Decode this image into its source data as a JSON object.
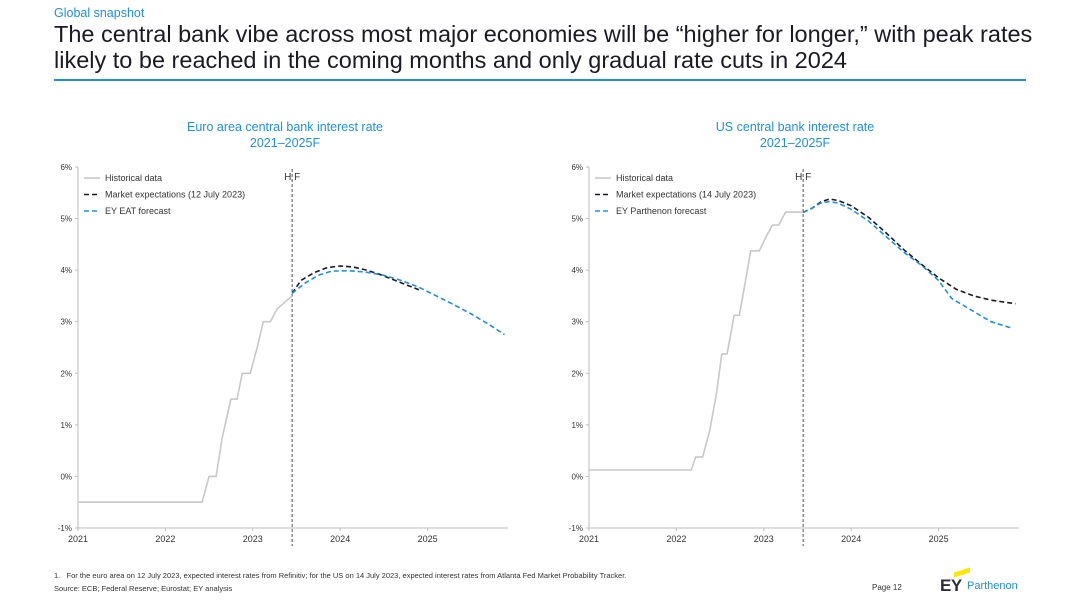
{
  "header": {
    "kicker": "Global snapshot",
    "headline": "The central bank vibe across most major economies will be “higher for longer,” with peak rates likely to be reached in the coming months and only gradual rate cuts in 2024"
  },
  "chart_data": [
    {
      "type": "line",
      "title": "Euro area central bank interest rate",
      "subtitle": "2021–2025F",
      "xlabel": "",
      "ylabel": "",
      "xlim": [
        2021.0,
        2025.92
      ],
      "ylim": [
        -1,
        6
      ],
      "y_ticks": [
        "-1%",
        "0%",
        "1%",
        "2%",
        "3%",
        "4%",
        "5%",
        "6%"
      ],
      "x_ticks": [
        "2021",
        "2022",
        "2023",
        "2024",
        "2025"
      ],
      "divider_x": 2023.45,
      "divider_label": "H F",
      "legend": [
        "Historical data",
        "Market expectations (12 July 2023)",
        "EY EAT forecast"
      ],
      "series": [
        {
          "name": "Historical data",
          "style": "solid",
          "color": "#c8c8c8",
          "x": [
            2021.0,
            2022.42,
            2022.5,
            2022.58,
            2022.65,
            2022.75,
            2022.82,
            2022.88,
            2022.97,
            2023.05,
            2023.12,
            2023.2,
            2023.28,
            2023.45
          ],
          "y": [
            -0.5,
            -0.5,
            0.0,
            0.0,
            0.75,
            1.5,
            1.5,
            2.0,
            2.0,
            2.5,
            3.0,
            3.0,
            3.25,
            3.5
          ]
        },
        {
          "name": "Market expectations (12 July 2023)",
          "style": "dashed",
          "color": "#1a1a24",
          "x": [
            2023.45,
            2023.55,
            2023.7,
            2023.85,
            2024.0,
            2024.15,
            2024.3,
            2024.45,
            2024.6,
            2024.75,
            2024.9
          ],
          "y": [
            3.55,
            3.8,
            3.95,
            4.05,
            4.08,
            4.06,
            4.0,
            3.92,
            3.82,
            3.72,
            3.62
          ]
        },
        {
          "name": "EY EAT forecast",
          "style": "dashed",
          "color": "#1f8fe0",
          "x": [
            2023.45,
            2023.6,
            2023.75,
            2023.9,
            2024.1,
            2024.3,
            2024.5,
            2024.7,
            2024.9,
            2025.1,
            2025.3,
            2025.5,
            2025.7,
            2025.88
          ],
          "y": [
            3.55,
            3.75,
            3.9,
            3.98,
            3.99,
            3.96,
            3.9,
            3.8,
            3.67,
            3.5,
            3.33,
            3.15,
            2.95,
            2.75
          ]
        }
      ]
    },
    {
      "type": "line",
      "title": "US central bank interest rate",
      "subtitle": "2021–2025F",
      "xlabel": "",
      "ylabel": "",
      "xlim": [
        2021.0,
        2025.92
      ],
      "ylim": [
        -1,
        6
      ],
      "y_ticks": [
        "-1%",
        "0%",
        "1%",
        "2%",
        "3%",
        "4%",
        "5%",
        "6%"
      ],
      "x_ticks": [
        "2021",
        "2022",
        "2023",
        "2024",
        "2025"
      ],
      "divider_x": 2023.45,
      "divider_label": "H F",
      "legend": [
        "Historical data",
        "Market expectations (14 July 2023)",
        "EY Parthenon forecast"
      ],
      "series": [
        {
          "name": "Historical data",
          "style": "solid",
          "color": "#c8c8c8",
          "x": [
            2021.0,
            2022.17,
            2022.22,
            2022.3,
            2022.38,
            2022.46,
            2022.52,
            2022.58,
            2022.66,
            2022.72,
            2022.8,
            2022.85,
            2022.95,
            2023.02,
            2023.1,
            2023.17,
            2023.25,
            2023.32,
            2023.4,
            2023.45
          ],
          "y": [
            0.125,
            0.125,
            0.375,
            0.375,
            0.875,
            1.625,
            2.375,
            2.375,
            3.125,
            3.125,
            3.875,
            4.375,
            4.375,
            4.625,
            4.875,
            4.875,
            5.125,
            5.125,
            5.125,
            5.125
          ]
        },
        {
          "name": "Market expectations (14 July 2023)",
          "style": "dashed",
          "color": "#1a1a24",
          "x": [
            2023.45,
            2023.55,
            2023.65,
            2023.75,
            2023.85,
            2024.0,
            2024.2,
            2024.4,
            2024.6,
            2024.8,
            2025.0,
            2025.2,
            2025.4,
            2025.6,
            2025.75,
            2025.88
          ],
          "y": [
            5.12,
            5.2,
            5.32,
            5.38,
            5.35,
            5.25,
            5.02,
            4.72,
            4.4,
            4.12,
            3.85,
            3.63,
            3.5,
            3.42,
            3.38,
            3.35
          ]
        },
        {
          "name": "EY Parthenon forecast",
          "style": "dashed",
          "color": "#1f8fe0",
          "x": [
            2023.45,
            2023.55,
            2023.65,
            2023.75,
            2023.85,
            2024.0,
            2024.2,
            2024.4,
            2024.6,
            2024.8,
            2025.0,
            2025.15,
            2025.3,
            2025.45,
            2025.6,
            2025.75,
            2025.85
          ],
          "y": [
            5.12,
            5.2,
            5.3,
            5.33,
            5.3,
            5.18,
            4.95,
            4.65,
            4.35,
            4.1,
            3.8,
            3.45,
            3.3,
            3.15,
            3.0,
            2.92,
            2.87
          ]
        }
      ]
    }
  ],
  "footer": {
    "footnote": "1.   For the euro area on 12 July 2023, expected interest rates from Refinitiv; for the US on 14 July 2023, expected interest rates from Atlanta Fed Market Probability Tracker.",
    "source": "Source: ECB; Federal Reserve; Eurostat; EY analysis",
    "page": "Page 12",
    "logo_mark": "EY",
    "logo_name": "Parthenon"
  },
  "colors": {
    "accent": "#1f8fe0",
    "text": "#1a1a24",
    "grid": "#c8c8c8",
    "logo_yellow": "#ffe600"
  }
}
